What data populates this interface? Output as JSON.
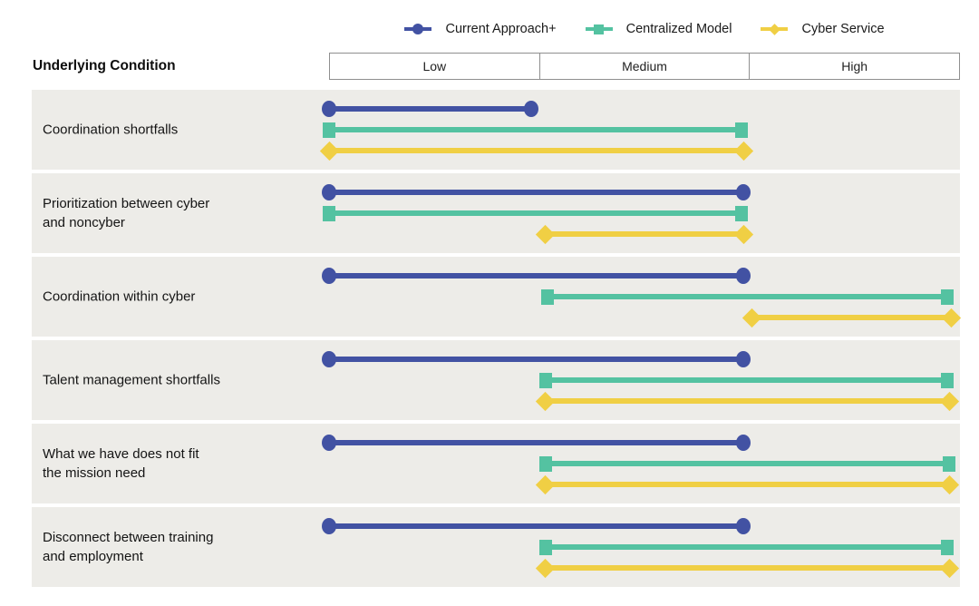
{
  "legend": {
    "items": [
      {
        "label": "Current Approach+",
        "marker": "circle",
        "color": "#4252a3",
        "icon_name": "blue-circle-line-icon"
      },
      {
        "label": "Centralized Model",
        "marker": "square",
        "color": "#54c2a1",
        "icon_name": "teal-square-line-icon"
      },
      {
        "label": "Cyber Service",
        "marker": "diamond",
        "color": "#f0cf44",
        "icon_name": "yellow-diamond-line-icon"
      }
    ]
  },
  "header": {
    "row_label": "Underlying Condition",
    "columns": [
      "Low",
      "Medium",
      "High"
    ]
  },
  "colors": {
    "current_approach_blue": "#4252a3",
    "centralized_model_teal": "#54c2a1",
    "cyber_service_yellow": "#f0cf44",
    "row_band_background": "#edece8",
    "header_border": "#8f8f8f",
    "page_background": "#ffffff"
  },
  "chart_data": {
    "type": "bar",
    "subtype": "horizontal-range-dumbbell",
    "title": "",
    "xlabel": "",
    "ylabel": "Underlying Condition",
    "x_axis": {
      "categories": [
        "Low",
        "Medium",
        "High"
      ],
      "range": [
        0,
        3
      ],
      "units_note": "values in column units: 0 = left edge of Low, 1 = Low/Medium boundary, 2 = Medium/High boundary, 3 = right edge of High"
    },
    "grid": false,
    "legend_position": "top-center",
    "categories": [
      {
        "label": "Coordination shortfalls",
        "lines": [
          "Coordination shortfalls"
        ]
      },
      {
        "label": "Prioritization between cyber and noncyber",
        "lines": [
          "Prioritization between cyber",
          "and noncyber"
        ]
      },
      {
        "label": "Coordination within cyber",
        "lines": [
          "Coordination within cyber"
        ]
      },
      {
        "label": "Talent management shortfalls",
        "lines": [
          "Talent management shortfalls"
        ]
      },
      {
        "label": "What we have does not fit the mission need",
        "lines": [
          "What we have does not fit",
          "the mission need"
        ]
      },
      {
        "label": "Disconnect between training and employment",
        "lines": [
          "Disconnect between training",
          "and employment"
        ]
      }
    ],
    "series": [
      {
        "name": "Current Approach+",
        "marker": "circle",
        "color": "#4252a3",
        "ranges": [
          [
            0,
            0.96
          ],
          [
            0,
            1.97
          ],
          [
            0,
            1.97
          ],
          [
            0,
            1.97
          ],
          [
            0,
            1.97
          ],
          [
            0,
            1.97
          ]
        ]
      },
      {
        "name": "Centralized Model",
        "marker": "square",
        "color": "#54c2a1",
        "ranges": [
          [
            0,
            1.96
          ],
          [
            0,
            1.96
          ],
          [
            1.04,
            2.94
          ],
          [
            1.03,
            2.94
          ],
          [
            1.03,
            2.95
          ],
          [
            1.03,
            2.94
          ]
        ]
      },
      {
        "name": "Cyber Service",
        "marker": "diamond",
        "color": "#f0cf44",
        "ranges": [
          [
            0,
            1.97
          ],
          [
            1.03,
            1.97
          ],
          [
            2.01,
            2.96
          ],
          [
            1.03,
            2.95
          ],
          [
            1.03,
            2.95
          ],
          [
            1.03,
            2.95
          ]
        ]
      }
    ]
  }
}
